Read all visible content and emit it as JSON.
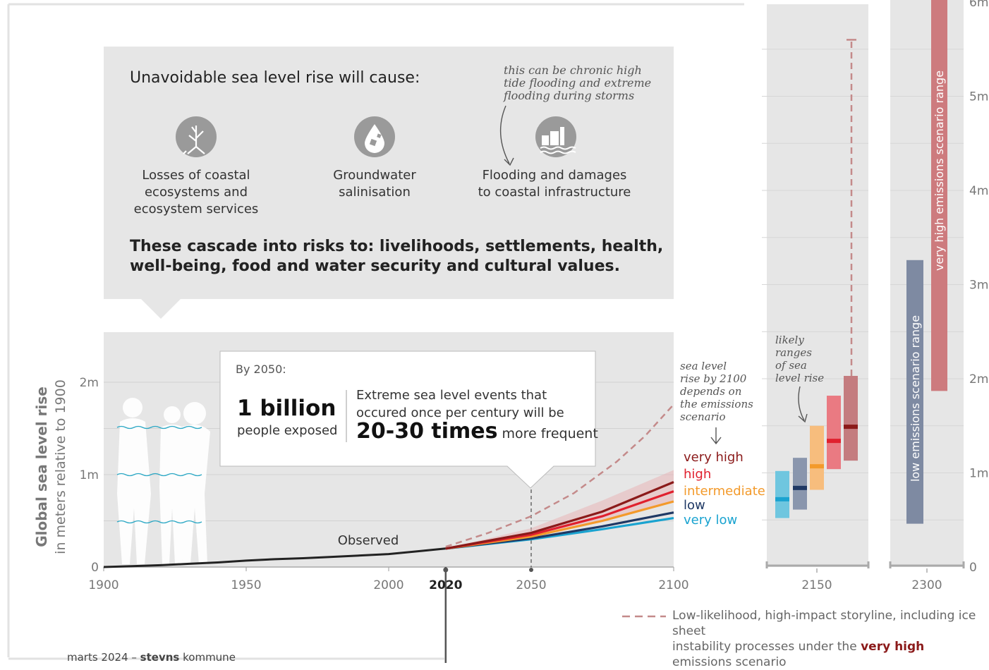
{
  "panel": {
    "title": "Unavoidable sea level rise will cause:",
    "impacts": [
      {
        "label_lines": [
          "Losses of coastal",
          "ecosystems and",
          "ecosystem services"
        ],
        "icon": "mangrove-icon"
      },
      {
        "label_lines": [
          "Groundwater",
          "salinisation"
        ],
        "icon": "salt-water-drop-icon"
      },
      {
        "label_lines": [
          "Flooding and damages",
          "to coastal infrastructure"
        ],
        "icon": "flooded-city-icon"
      }
    ],
    "flood_note": [
      "this can be chronic high",
      "tide flooding and extreme",
      "flooding during storms"
    ],
    "cascade_lines": [
      "These cascade into risks to: livelihoods, settlements, health,",
      "well-being, food and water security and cultural values."
    ]
  },
  "callout": {
    "year": "By 2050:",
    "big_number": "1 billion",
    "big_number_sub": "people exposed",
    "events_line1": "Extreme sea level events that",
    "events_line2": "occured once per century will be",
    "times": "20-30 times",
    "times_tail": "more frequent"
  },
  "notes": {
    "depends": [
      "sea level",
      "rise by 2100",
      "depends on",
      "the emissions",
      "scenario"
    ],
    "likely": [
      "likely",
      "ranges",
      "of sea",
      "level rise"
    ],
    "observed": "Observed"
  },
  "legend_note": {
    "line1": "Low-likelihood, high-impact storyline, including ice sheet",
    "line2_pre": "instability processes under the",
    "line2_bold": "very high",
    "line2_post": "emissions scenario"
  },
  "footer": {
    "prefix": "marts 2024 –",
    "bold": "stevns",
    "suffix": "kommune"
  },
  "colors": {
    "very_high": "#8b1a1a",
    "high": "#e0202e",
    "intermediate": "#f39a2b",
    "low": "#1f3864",
    "very_low": "#1aa3d0",
    "storyline": "#c48a8a",
    "observed": "#222222",
    "panel_bg": "#e6e6e6"
  },
  "chart_data": {
    "type": "line",
    "ylabel": "Global sea level rise",
    "ylabel_sub": "in meters relative to 1900",
    "yticks": [
      {
        "v": 0,
        "label": "0"
      },
      {
        "v": 1,
        "label": "1m"
      },
      {
        "v": 2,
        "label": "2m"
      }
    ],
    "right_yticks": [
      {
        "v": 0,
        "label": "0"
      },
      {
        "v": 1,
        "label": "1m"
      },
      {
        "v": 2,
        "label": "2m"
      },
      {
        "v": 3,
        "label": "3m"
      },
      {
        "v": 4,
        "label": "4m"
      },
      {
        "v": 5,
        "label": "5m"
      },
      {
        "v": 6,
        "label": "6m"
      }
    ],
    "xticks": [
      {
        "v": 1900,
        "label": "1900"
      },
      {
        "v": 1950,
        "label": "1950"
      },
      {
        "v": 2000,
        "label": "2000"
      },
      {
        "v": 2020,
        "label": "2020",
        "bold": true
      },
      {
        "v": 2050,
        "label": "2050"
      },
      {
        "v": 2100,
        "label": "2100"
      }
    ],
    "xlim": [
      1900,
      2100
    ],
    "ylim": [
      0,
      2.5
    ],
    "observed": {
      "name": "Observed",
      "x": [
        1900,
        1910,
        1920,
        1930,
        1940,
        1950,
        1960,
        1970,
        1980,
        1990,
        2000,
        2010,
        2020
      ],
      "y": [
        0.0,
        0.01,
        0.02,
        0.035,
        0.05,
        0.07,
        0.085,
        0.095,
        0.11,
        0.125,
        0.14,
        0.17,
        0.2
      ]
    },
    "scenarios": [
      {
        "name": "very high",
        "color_key": "very_high",
        "x": [
          2020,
          2050,
          2075,
          2100
        ],
        "y": [
          0.2,
          0.37,
          0.6,
          0.92
        ],
        "band_low": [
          0.2,
          0.33,
          0.5,
          0.7
        ],
        "band_high": [
          0.2,
          0.42,
          0.72,
          1.05
        ]
      },
      {
        "name": "high",
        "color_key": "high",
        "x": [
          2020,
          2050,
          2075,
          2100
        ],
        "y": [
          0.2,
          0.35,
          0.55,
          0.82
        ]
      },
      {
        "name": "intermediate",
        "color_key": "intermediate",
        "x": [
          2020,
          2050,
          2075,
          2100
        ],
        "y": [
          0.2,
          0.33,
          0.5,
          0.71
        ]
      },
      {
        "name": "low",
        "color_key": "low",
        "x": [
          2020,
          2050,
          2075,
          2100
        ],
        "y": [
          0.2,
          0.31,
          0.44,
          0.59
        ]
      },
      {
        "name": "very low",
        "color_key": "very_low",
        "x": [
          2020,
          2050,
          2075,
          2100
        ],
        "y": [
          0.2,
          0.3,
          0.41,
          0.53
        ]
      }
    ],
    "storyline": {
      "x": [
        2020,
        2035,
        2050,
        2065,
        2080,
        2090,
        2100
      ],
      "y": [
        0.22,
        0.37,
        0.55,
        0.8,
        1.14,
        1.42,
        1.76
      ],
      "style": "dashed"
    },
    "range_2150": {
      "label": "2150",
      "bars": [
        {
          "scenario": "very low",
          "low": 0.52,
          "high": 1.02,
          "median": 0.72
        },
        {
          "scenario": "low",
          "low": 0.61,
          "high": 1.16,
          "median": 0.84
        },
        {
          "scenario": "intermediate",
          "low": 0.82,
          "high": 1.5,
          "median": 1.07
        },
        {
          "scenario": "high",
          "low": 1.04,
          "high": 1.82,
          "median": 1.34
        },
        {
          "scenario": "very high",
          "low": 1.13,
          "high": 2.03,
          "median": 1.49
        }
      ],
      "storyline_high": 5.6
    },
    "range_2300": {
      "label": "2300",
      "bars": [
        {
          "label": "low emissions scenario range",
          "low": 0.46,
          "high": 3.26,
          "color": "#7e8aa2"
        },
        {
          "label": "very high emissions scenario range",
          "low": 1.87,
          "high": 6.1,
          "color": "#cd7b7e"
        }
      ]
    }
  }
}
